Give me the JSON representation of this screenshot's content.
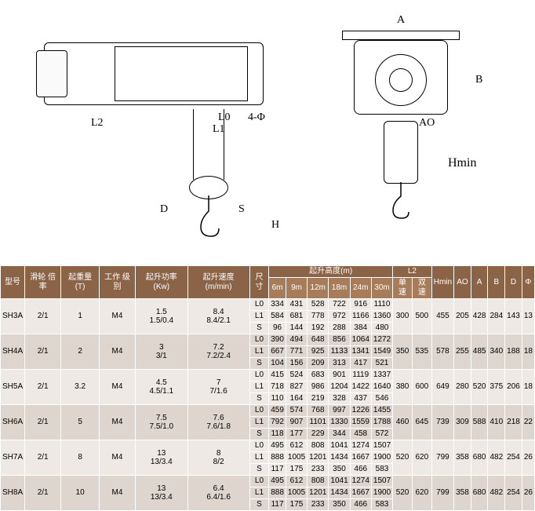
{
  "diagram": {
    "labels": {
      "L2": "L2",
      "L0": "L0",
      "L1": "L1",
      "fourPhi": "4-Φ",
      "D": "D",
      "S": "S",
      "H": "H",
      "A": "A",
      "B": "B",
      "AO": "AO",
      "Hmin": "Hmin"
    }
  },
  "table": {
    "headers": {
      "model": "型号",
      "pulleyRatio": "滑轮\n倍率",
      "ratedLoad": "起重量\n(T)",
      "workClass": "工作\n级别",
      "liftPower": "起升功率\n(Kw)",
      "liftSpeed": "起升速度\n(m/min)",
      "dim": "尺寸",
      "liftHeight": "起升高度(m)",
      "L2": "L2",
      "Hmin": "Hmin",
      "AO": "AO",
      "A": "A",
      "B": "B",
      "D": "D",
      "Phi": "Φ",
      "h6": "6m",
      "h9": "9m",
      "h12": "12m",
      "h18": "18m",
      "h24": "24m",
      "h30": "30m",
      "single": "单速",
      "double": "双速"
    },
    "rows": [
      {
        "model": "SH3A",
        "ratio": "2/1",
        "load": "1",
        "class": "M4",
        "power": [
          "1.5",
          "1.5/0.4"
        ],
        "speed": [
          "8.4",
          "8.4/2.1"
        ],
        "subs": [
          {
            "d": "L0",
            "v": [
              "334",
              "431",
              "528",
              "722",
              "916",
              "1110"
            ]
          },
          {
            "d": "L1",
            "v": [
              "584",
              "681",
              "778",
              "972",
              "1166",
              "1360"
            ]
          },
          {
            "d": "S",
            "v": [
              "96",
              "144",
              "192",
              "288",
              "384",
              "480"
            ]
          }
        ],
        "l2s": "300",
        "l2d": "500",
        "hmin": "455",
        "ao": "205",
        "a": "428",
        "b": "284",
        "dd": "143",
        "phi": "13",
        "band": "a"
      },
      {
        "model": "SH4A",
        "ratio": "2/1",
        "load": "2",
        "class": "M4",
        "power": [
          "3",
          "3/1"
        ],
        "speed": [
          "7.2",
          "7.2/2.4"
        ],
        "subs": [
          {
            "d": "L0",
            "v": [
              "390",
              "494",
              "648",
              "856",
              "1064",
              "1272"
            ]
          },
          {
            "d": "L1",
            "v": [
              "667",
              "771",
              "925",
              "1133",
              "1341",
              "1549"
            ]
          },
          {
            "d": "S",
            "v": [
              "104",
              "156",
              "209",
              "313",
              "417",
              "521"
            ]
          }
        ],
        "l2s": "350",
        "l2d": "535",
        "hmin": "578",
        "ao": "255",
        "a": "485",
        "b": "340",
        "dd": "188",
        "phi": "18",
        "band": "b"
      },
      {
        "model": "SH5A",
        "ratio": "2/1",
        "load": "3.2",
        "class": "M4",
        "power": [
          "4.5",
          "4.5/1.1"
        ],
        "speed": [
          "7",
          "7/1.6"
        ],
        "subs": [
          {
            "d": "L0",
            "v": [
              "415",
              "524",
              "683",
              "901",
              "1119",
              "1337"
            ]
          },
          {
            "d": "L1",
            "v": [
              "718",
              "827",
              "986",
              "1204",
              "1422",
              "1640"
            ]
          },
          {
            "d": "S",
            "v": [
              "110",
              "164",
              "219",
              "328",
              "437",
              "546"
            ]
          }
        ],
        "l2s": "380",
        "l2d": "600",
        "hmin": "649",
        "ao": "280",
        "a": "520",
        "b": "375",
        "dd": "206",
        "phi": "18",
        "band": "a"
      },
      {
        "model": "SH6A",
        "ratio": "2/1",
        "load": "5",
        "class": "M4",
        "power": [
          "7.5",
          "7.5/1.0"
        ],
        "speed": [
          "7.6",
          "7.6/1.8"
        ],
        "subs": [
          {
            "d": "L0",
            "v": [
              "459",
              "574",
              "768",
              "997",
              "1226",
              "1455"
            ]
          },
          {
            "d": "L1",
            "v": [
              "792",
              "907",
              "1101",
              "1330",
              "1559",
              "1788"
            ]
          },
          {
            "d": "S",
            "v": [
              "118",
              "177",
              "229",
              "344",
              "458",
              "572"
            ]
          }
        ],
        "l2s": "460",
        "l2d": "645",
        "hmin": "739",
        "ao": "309",
        "a": "588",
        "b": "410",
        "dd": "218",
        "phi": "22",
        "band": "b"
      },
      {
        "model": "SH7A",
        "ratio": "2/1",
        "load": "8",
        "class": "M4",
        "power": [
          "13",
          "13/3.4"
        ],
        "speed": [
          "8",
          "8/2"
        ],
        "subs": [
          {
            "d": "L0",
            "v": [
              "495",
              "612",
              "808",
              "1041",
              "1274",
              "1507"
            ]
          },
          {
            "d": "L1",
            "v": [
              "888",
              "1005",
              "1201",
              "1434",
              "1667",
              "1900"
            ]
          },
          {
            "d": "S",
            "v": [
              "117",
              "175",
              "233",
              "350",
              "466",
              "583"
            ]
          }
        ],
        "l2s": "520",
        "l2d": "620",
        "hmin": "799",
        "ao": "358",
        "a": "680",
        "b": "482",
        "dd": "254",
        "phi": "26",
        "band": "a"
      },
      {
        "model": "SH8A",
        "ratio": "2/1",
        "load": "10",
        "class": "M4",
        "power": [
          "13",
          "13/3.4"
        ],
        "speed": [
          "6.4",
          "6.4/1.6"
        ],
        "subs": [
          {
            "d": "L0",
            "v": [
              "495",
              "612",
              "808",
              "1041",
              "1274",
              "1507"
            ]
          },
          {
            "d": "L1",
            "v": [
              "888",
              "1005",
              "1201",
              "1434",
              "1667",
              "1900"
            ]
          },
          {
            "d": "S",
            "v": [
              "117",
              "175",
              "233",
              "350",
              "466",
              "583"
            ]
          }
        ],
        "l2s": "520",
        "l2d": "620",
        "hmin": "799",
        "ao": "358",
        "a": "680",
        "b": "482",
        "dd": "254",
        "phi": "26",
        "band": "b"
      }
    ]
  }
}
